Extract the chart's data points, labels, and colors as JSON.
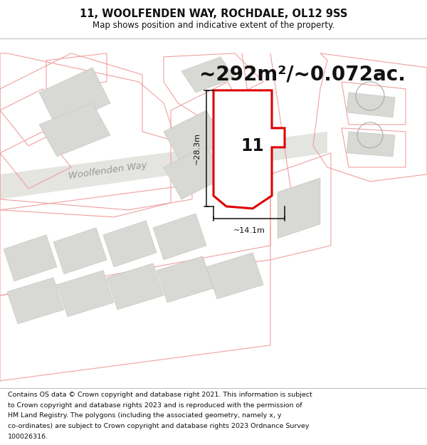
{
  "title": "11, WOOLFENDEN WAY, ROCHDALE, OL12 9SS",
  "subtitle": "Map shows position and indicative extent of the property.",
  "area_text": "~292m²/~0.072ac.",
  "dim_width": "~14.1m",
  "dim_height": "~28.3m",
  "property_number": "11",
  "street_name": "Woolfenden Way",
  "footer_line1": "Contains OS data © Crown copyright and database right 2021. This information is subject",
  "footer_line2": "to Crown copyright and database rights 2023 and is reproduced with the permission of",
  "footer_line3": "HM Land Registry. The polygons (including the associated geometry, namely x, y",
  "footer_line4": "co-ordinates) are subject to Crown copyright and database rights 2023 Ordnance Survey",
  "footer_line5": "100026316.",
  "bg_color": "#ffffff",
  "map_bg": "#f8f8f6",
  "plot_color": "#dd0000",
  "plot_fill": "#ffffff",
  "other_plot_color": "#f0a0a0",
  "road_fill": "#e8e8e4",
  "building_fill": "#d8d8d4",
  "title_fontsize": 10.5,
  "subtitle_fontsize": 8.5,
  "area_fontsize": 20,
  "label_fontsize": 8,
  "street_fontsize": 9.5,
  "number_fontsize": 17,
  "footer_fontsize": 6.8
}
